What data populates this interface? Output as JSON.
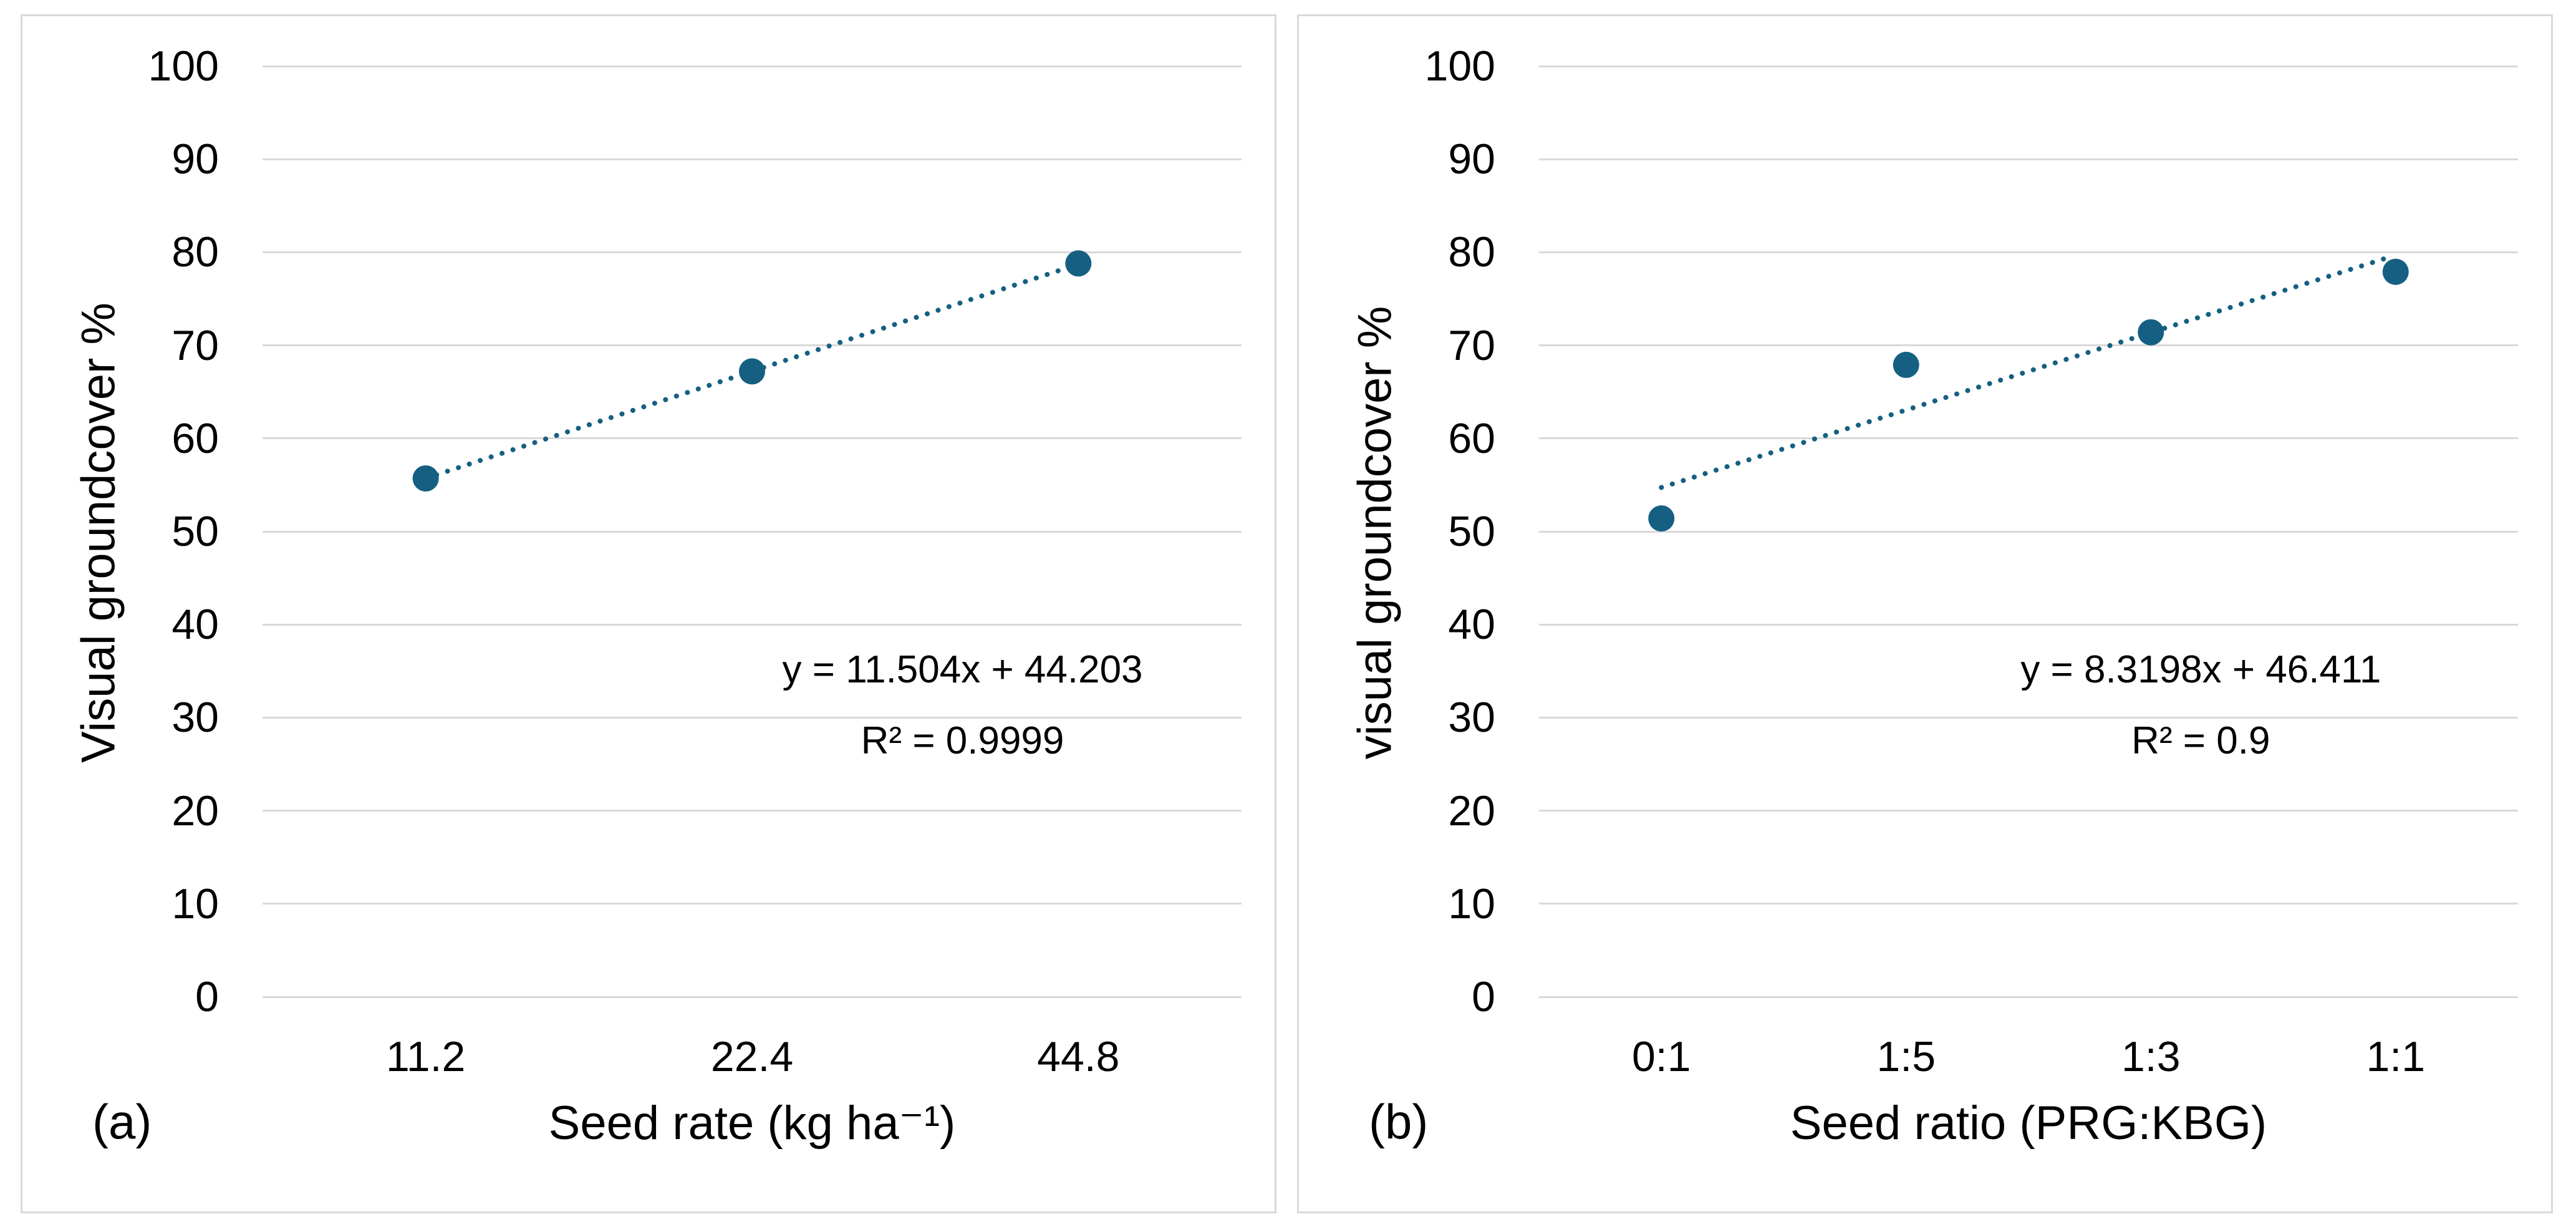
{
  "colors": {
    "accent": "#156082",
    "gridline": "#D9D9D9",
    "panel_border": "#D9D9D9",
    "text": "#000000",
    "background": "#FFFFFF"
  },
  "chart_data": [
    {
      "type": "scatter",
      "panel_label": "(a)",
      "xlabel": "Seed rate (kg ha⁻¹)",
      "ylabel": "Visual groundcover %",
      "categories": [
        "11.2",
        "22.4",
        "44.8"
      ],
      "x_positions": [
        1,
        2,
        3
      ],
      "values": [
        55.7,
        67.2,
        78.8
      ],
      "ylim": [
        0,
        100
      ],
      "yticks": [
        0,
        10,
        20,
        30,
        40,
        50,
        60,
        70,
        80,
        90,
        100
      ],
      "grid": "horizontal",
      "legend": "none",
      "marker": {
        "shape": "circle",
        "color": "#156082"
      },
      "trendline": {
        "style": "dotted",
        "color": "#156082",
        "slope": 11.504,
        "intercept": 44.203,
        "x_start": 1,
        "x_end": 3.02,
        "equation": "y = 11.504x + 44.203",
        "r_squared": "R² = 0.9999",
        "label_pos": {
          "x_frac": 0.715,
          "y_frac": 0.649
        }
      }
    },
    {
      "type": "scatter",
      "panel_label": "(b)",
      "xlabel": "Seed ratio (PRG:KBG)",
      "ylabel": "visual groundcover %",
      "categories": [
        "0:1",
        "1:5",
        "1:3",
        "1:1"
      ],
      "x_positions": [
        1,
        2,
        3,
        4
      ],
      "values": [
        51.4,
        67.9,
        71.4,
        77.9
      ],
      "ylim": [
        0,
        100
      ],
      "yticks": [
        0,
        10,
        20,
        30,
        40,
        50,
        60,
        70,
        80,
        90,
        100
      ],
      "grid": "horizontal",
      "legend": "none",
      "marker": {
        "shape": "circle",
        "color": "#156082"
      },
      "trendline": {
        "style": "dotted",
        "color": "#156082",
        "slope": 8.3198,
        "intercept": 46.411,
        "x_start": 1,
        "x_end": 3.97,
        "equation": "y = 8.3198x + 46.411",
        "r_squared": "R² = 0.9",
        "label_pos": {
          "x_frac": 0.676,
          "y_frac": 0.649
        }
      }
    }
  ]
}
